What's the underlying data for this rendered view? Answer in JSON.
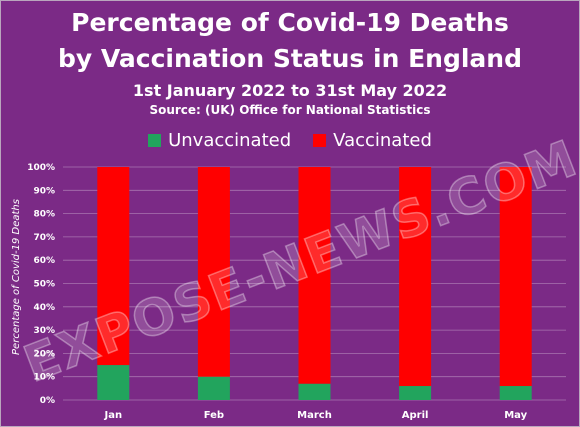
{
  "chart_data": {
    "type": "bar",
    "stacked": true,
    "title_line1": "Percentage of Covid-19 Deaths",
    "title_line2": "by Vaccination Status in England",
    "subtitle": "1st January 2022 to 31st May 2022",
    "source": "Source:  (UK) Office for National Statistics",
    "ylabel": "Percentage of Covid-19 Deaths",
    "xlabel": "",
    "ylim": [
      0,
      100
    ],
    "yticks": [
      "0%",
      "10%",
      "20%",
      "30%",
      "40%",
      "50%",
      "60%",
      "70%",
      "80%",
      "90%",
      "100%"
    ],
    "categories": [
      "Jan",
      "Feb",
      "March",
      "April",
      "May"
    ],
    "series": [
      {
        "name": "Unvaccinated",
        "values": [
          15,
          10,
          7,
          6,
          6
        ],
        "color": "#22a45d"
      },
      {
        "name": "Vaccinated",
        "values": [
          85,
          90,
          93,
          94,
          94
        ],
        "color": "#ff0000"
      }
    ],
    "grid": true,
    "legend_position": "top",
    "background_color": "#7b2a86"
  },
  "watermark": "EXPOSE-NEWS.COM"
}
